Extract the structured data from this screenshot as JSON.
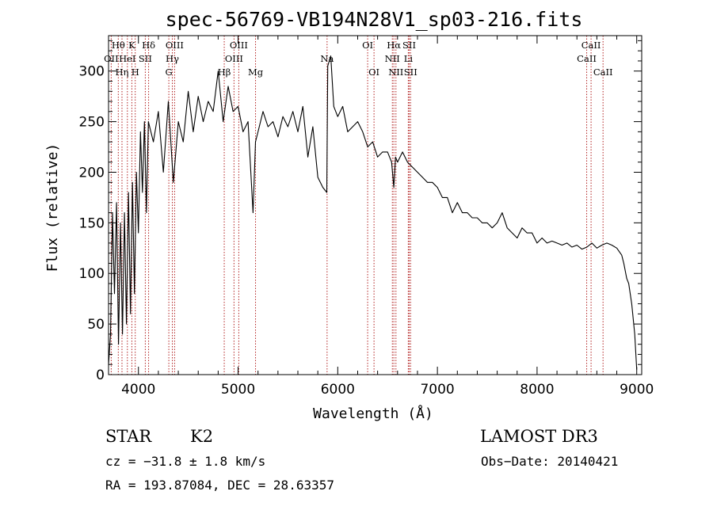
{
  "chart_data": {
    "type": "line",
    "title": "spec-56769-VB194N28V1_sp03-216.fits",
    "xlabel": "Wavelength (Å)",
    "ylabel": "Flux (relative)",
    "xlim": [
      3700,
      9050
    ],
    "ylim": [
      0,
      335
    ],
    "xticks": [
      4000,
      5000,
      6000,
      7000,
      8000,
      9000
    ],
    "yticks": [
      0,
      50,
      100,
      150,
      200,
      250,
      300
    ],
    "line_color": "#000000",
    "marker_color": "#b22222",
    "spectrum": {
      "x": [
        3700,
        3720,
        3740,
        3760,
        3780,
        3800,
        3820,
        3840,
        3860,
        3880,
        3900,
        3920,
        3940,
        3960,
        3980,
        4000,
        4020,
        4040,
        4060,
        4080,
        4100,
        4150,
        4200,
        4250,
        4300,
        4350,
        4400,
        4450,
        4500,
        4550,
        4600,
        4650,
        4700,
        4750,
        4800,
        4850,
        4900,
        4950,
        5000,
        5050,
        5100,
        5150,
        5175,
        5200,
        5250,
        5300,
        5350,
        5400,
        5450,
        5500,
        5550,
        5600,
        5650,
        5700,
        5750,
        5800,
        5850,
        5890,
        5900,
        5930,
        5960,
        6000,
        6050,
        6100,
        6150,
        6200,
        6250,
        6300,
        6350,
        6400,
        6450,
        6500,
        6540,
        6563,
        6580,
        6600,
        6650,
        6700,
        6750,
        6800,
        6850,
        6900,
        6950,
        7000,
        7050,
        7100,
        7150,
        7200,
        7250,
        7300,
        7350,
        7400,
        7450,
        7500,
        7550,
        7600,
        7650,
        7700,
        7750,
        7800,
        7850,
        7900,
        7950,
        8000,
        8050,
        8100,
        8150,
        8200,
        8250,
        8300,
        8350,
        8400,
        8450,
        8500,
        8550,
        8600,
        8650,
        8700,
        8750,
        8800,
        8850,
        8870,
        8900,
        8920,
        8950,
        8980,
        9000
      ],
      "y": [
        10,
        40,
        160,
        80,
        170,
        30,
        150,
        40,
        160,
        50,
        180,
        60,
        190,
        80,
        200,
        140,
        240,
        180,
        250,
        160,
        250,
        230,
        260,
        200,
        270,
        190,
        250,
        230,
        280,
        240,
        275,
        250,
        270,
        260,
        300,
        250,
        285,
        260,
        265,
        240,
        250,
        160,
        230,
        240,
        260,
        245,
        250,
        235,
        255,
        245,
        260,
        240,
        265,
        215,
        245,
        195,
        185,
        180,
        305,
        315,
        265,
        255,
        265,
        240,
        245,
        250,
        240,
        225,
        230,
        215,
        220,
        220,
        210,
        185,
        215,
        210,
        220,
        210,
        205,
        200,
        195,
        190,
        190,
        185,
        175,
        175,
        160,
        170,
        160,
        160,
        155,
        155,
        150,
        150,
        145,
        150,
        160,
        145,
        140,
        135,
        145,
        140,
        140,
        130,
        135,
        130,
        132,
        130,
        128,
        130,
        126,
        128,
        124,
        126,
        130,
        125,
        128,
        130,
        128,
        125,
        118,
        110,
        95,
        90,
        70,
        40,
        5
      ]
    },
    "lines": [
      {
        "label": "Hθ",
        "x": 3798,
        "row": 1
      },
      {
        "label": "OII",
        "x": 3727,
        "row": 2
      },
      {
        "label": "Hη",
        "x": 3835,
        "row": 3
      },
      {
        "label": "K",
        "x": 3934,
        "row": 1
      },
      {
        "label": "HeI",
        "x": 3889,
        "row": 2
      },
      {
        "label": "H",
        "x": 3968,
        "row": 3
      },
      {
        "label": "Hδ",
        "x": 4102,
        "row": 1
      },
      {
        "label": "SII",
        "x": 4069,
        "row": 2
      },
      {
        "label": "OIII",
        "x": 4363,
        "row": 1
      },
      {
        "label": "Hγ",
        "x": 4340,
        "row": 2
      },
      {
        "label": "G",
        "x": 4305,
        "row": 3
      },
      {
        "label": "OIII",
        "x": 5007,
        "row": 1
      },
      {
        "label": "OIII",
        "x": 4959,
        "row": 2
      },
      {
        "label": "Hβ",
        "x": 4861,
        "row": 3
      },
      {
        "label": "Mg",
        "x": 5175,
        "row": 3
      },
      {
        "label": "Na",
        "x": 5893,
        "row": 2
      },
      {
        "label": "OI",
        "x": 6300,
        "row": 1
      },
      {
        "label": "OI",
        "x": 6364,
        "row": 3
      },
      {
        "label": "Hα",
        "x": 6563,
        "row": 1
      },
      {
        "label": "SII",
        "x": 6717,
        "row": 1
      },
      {
        "label": "NII",
        "x": 6548,
        "row": 2
      },
      {
        "label": "Li",
        "x": 6708,
        "row": 2
      },
      {
        "label": "NII",
        "x": 6584,
        "row": 3
      },
      {
        "label": "SII",
        "x": 6731,
        "row": 3
      },
      {
        "label": "CaII",
        "x": 8542,
        "row": 1
      },
      {
        "label": "CaII",
        "x": 8498,
        "row": 2
      },
      {
        "label": "CaII",
        "x": 8662,
        "row": 3
      }
    ]
  },
  "info": {
    "class": "STAR",
    "subclass": "K2",
    "survey": "LAMOST DR3",
    "cz": "cz = −31.8 ± 1.8 km/s",
    "obs_date": "Obs−Date: 20140421",
    "coords": "RA = 193.87084, DEC =  28.63357"
  }
}
